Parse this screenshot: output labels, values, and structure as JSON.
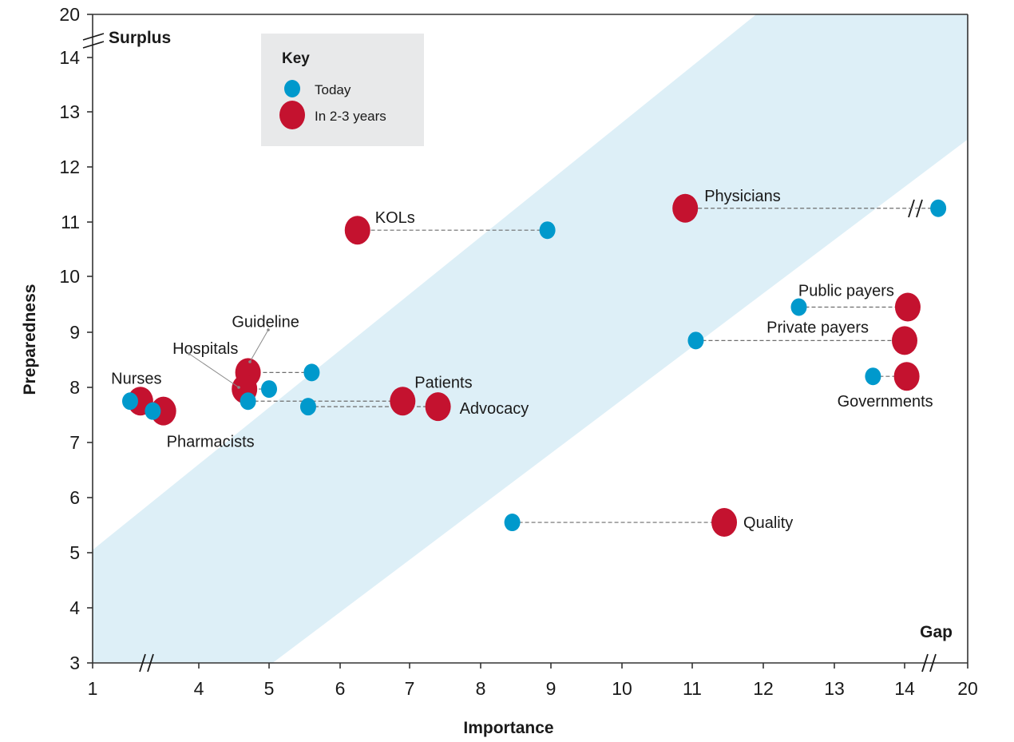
{
  "chart_data": {
    "type": "scatter",
    "title": "",
    "xlabel": "Importance",
    "ylabel": "Preparedness",
    "xlim": [
      1,
      20
    ],
    "ylim": [
      3,
      20
    ],
    "x_ticks": [
      "1",
      "4",
      "5",
      "6",
      "7",
      "8",
      "9",
      "10",
      "11",
      "12",
      "13",
      "14",
      "20"
    ],
    "y_ticks": [
      "3",
      "4",
      "5",
      "6",
      "7",
      "8",
      "9",
      "10",
      "11",
      "12",
      "13",
      "14",
      "20"
    ],
    "x_axis_breaks": [
      "between 1 and 4",
      "between 14 and 20"
    ],
    "y_axis_breaks": [
      "between 14 and 20"
    ],
    "grid": false,
    "corner_labels": {
      "top_left": "Surplus",
      "bottom_right": "Gap"
    },
    "band": {
      "description": "diagonal balanced zone",
      "upper_edge": [
        [
          1,
          5.05
        ],
        [
          11.9,
          20
        ]
      ],
      "lower_edge": [
        [
          5.05,
          3
        ],
        [
          20,
          12.5
        ]
      ],
      "color": "#ddeff7"
    },
    "legend": {
      "title": "Key",
      "placement": "top-left",
      "entries": [
        {
          "name": "Today",
          "color": "#0099cc"
        },
        {
          "name": "In 2-3 years",
          "color": "#c4122f"
        }
      ]
    },
    "series": [
      {
        "name": "Today",
        "color": "#0099cc"
      },
      {
        "name": "In 2-3 years",
        "color": "#c4122f"
      }
    ],
    "stakeholders": [
      {
        "label": "KOLs",
        "today": [
          8.95,
          10.85
        ],
        "future": [
          6.25,
          10.85
        ]
      },
      {
        "label": "Physicians",
        "today": [
          17.2,
          11.25
        ],
        "future": [
          10.9,
          11.25
        ]
      },
      {
        "label": "Public payers",
        "today": [
          12.5,
          9.45
        ],
        "future": [
          14.3,
          9.45
        ]
      },
      {
        "label": "Private payers",
        "today": [
          11.05,
          8.85
        ],
        "future": [
          14.0,
          8.85
        ]
      },
      {
        "label": "Governments",
        "today": [
          13.55,
          8.2
        ],
        "future": [
          14.2,
          8.2
        ]
      },
      {
        "label": "Quality",
        "today": [
          8.45,
          5.55
        ],
        "future": [
          11.45,
          5.55
        ]
      },
      {
        "label": "Guideline",
        "today": [
          5.6,
          8.27
        ],
        "future": [
          4.7,
          8.27
        ]
      },
      {
        "label": "Hospitals",
        "today": [
          5.0,
          7.97
        ],
        "future": [
          4.65,
          7.97
        ]
      },
      {
        "label": "Patients",
        "today": [
          4.7,
          7.75
        ],
        "future": [
          6.9,
          7.75
        ]
      },
      {
        "label": "Advocacy",
        "today": [
          5.55,
          7.65
        ],
        "future": [
          7.4,
          7.65
        ]
      },
      {
        "label": "Nurses",
        "today": [
          2.06,
          7.75
        ],
        "future": [
          2.35,
          7.75
        ]
      },
      {
        "label": "Pharmacists",
        "today": [
          2.7,
          7.57
        ],
        "future": [
          3.0,
          7.57
        ]
      }
    ]
  }
}
